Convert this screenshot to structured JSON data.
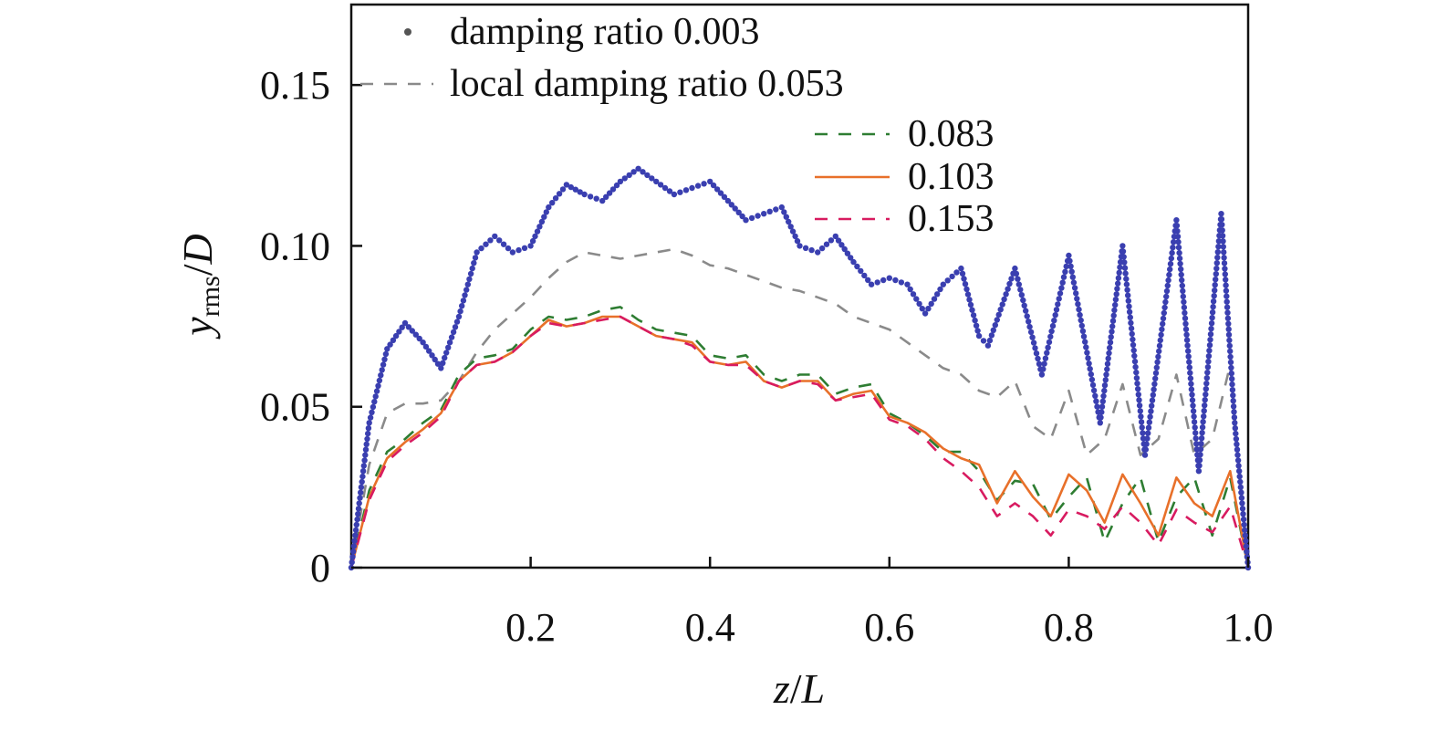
{
  "chart_data": {
    "type": "line",
    "xlabel": {
      "var": "z",
      "sep": "/",
      "denom": "L"
    },
    "ylabel": {
      "var": "y",
      "sub": "rms",
      "sep": "/",
      "denom": "D"
    },
    "xlim": [
      0,
      1.0
    ],
    "ylim": [
      0,
      0.175
    ],
    "xticks": [
      0.2,
      0.4,
      0.6,
      0.8,
      1.0
    ],
    "xtick_labels": [
      "0.2",
      "0.4",
      "0.6",
      "0.8",
      "1.0"
    ],
    "yticks": [
      0,
      0.05,
      0.1,
      0.15
    ],
    "ytick_labels": [
      "0",
      "0.05",
      "0.10",
      "0.15"
    ],
    "grid": false,
    "legend_placement": "top",
    "series": [
      {
        "name": "damping ratio 0.003",
        "style": "dots",
        "color": "#3a3fb0",
        "x": [
          0,
          0.02,
          0.04,
          0.06,
          0.08,
          0.1,
          0.12,
          0.14,
          0.16,
          0.18,
          0.2,
          0.22,
          0.24,
          0.26,
          0.28,
          0.3,
          0.32,
          0.34,
          0.36,
          0.38,
          0.4,
          0.42,
          0.44,
          0.46,
          0.48,
          0.5,
          0.52,
          0.54,
          0.56,
          0.58,
          0.6,
          0.62,
          0.64,
          0.66,
          0.68,
          0.7,
          0.71,
          0.74,
          0.77,
          0.8,
          0.835,
          0.86,
          0.885,
          0.92,
          0.945,
          0.97,
          0.985,
          1.0
        ],
        "y": [
          0,
          0.045,
          0.068,
          0.076,
          0.07,
          0.062,
          0.078,
          0.098,
          0.103,
          0.098,
          0.1,
          0.112,
          0.119,
          0.116,
          0.114,
          0.12,
          0.124,
          0.12,
          0.116,
          0.118,
          0.12,
          0.114,
          0.108,
          0.11,
          0.112,
          0.1,
          0.098,
          0.103,
          0.095,
          0.088,
          0.09,
          0.088,
          0.079,
          0.088,
          0.093,
          0.072,
          0.069,
          0.093,
          0.06,
          0.097,
          0.045,
          0.1,
          0.035,
          0.108,
          0.03,
          0.11,
          0.045,
          0.0
        ]
      },
      {
        "name": "local damping ratio 0.053",
        "style": "dash",
        "color": "#8a8a8a",
        "x": [
          0,
          0.02,
          0.04,
          0.06,
          0.08,
          0.1,
          0.12,
          0.14,
          0.16,
          0.18,
          0.2,
          0.22,
          0.24,
          0.26,
          0.28,
          0.3,
          0.32,
          0.34,
          0.36,
          0.38,
          0.4,
          0.42,
          0.44,
          0.46,
          0.48,
          0.5,
          0.52,
          0.54,
          0.56,
          0.58,
          0.6,
          0.62,
          0.64,
          0.66,
          0.68,
          0.7,
          0.72,
          0.74,
          0.76,
          0.78,
          0.8,
          0.82,
          0.84,
          0.86,
          0.88,
          0.9,
          0.92,
          0.94,
          0.96,
          0.98,
          1.0
        ],
        "y": [
          0,
          0.032,
          0.048,
          0.051,
          0.051,
          0.052,
          0.058,
          0.067,
          0.074,
          0.079,
          0.084,
          0.09,
          0.095,
          0.098,
          0.097,
          0.096,
          0.097,
          0.098,
          0.099,
          0.097,
          0.094,
          0.093,
          0.091,
          0.089,
          0.087,
          0.086,
          0.084,
          0.082,
          0.078,
          0.076,
          0.074,
          0.07,
          0.066,
          0.062,
          0.06,
          0.055,
          0.053,
          0.058,
          0.044,
          0.04,
          0.055,
          0.035,
          0.04,
          0.057,
          0.035,
          0.04,
          0.06,
          0.035,
          0.04,
          0.063,
          0.0
        ]
      },
      {
        "name": "0.083",
        "style": "dash",
        "color": "#2e7d32",
        "x": [
          0,
          0.02,
          0.04,
          0.06,
          0.08,
          0.1,
          0.12,
          0.14,
          0.16,
          0.18,
          0.2,
          0.22,
          0.24,
          0.26,
          0.28,
          0.3,
          0.32,
          0.34,
          0.36,
          0.38,
          0.4,
          0.42,
          0.44,
          0.46,
          0.48,
          0.5,
          0.52,
          0.54,
          0.56,
          0.58,
          0.6,
          0.62,
          0.64,
          0.66,
          0.68,
          0.7,
          0.72,
          0.74,
          0.76,
          0.78,
          0.8,
          0.82,
          0.84,
          0.86,
          0.88,
          0.9,
          0.92,
          0.94,
          0.96,
          0.98,
          1.0
        ],
        "y": [
          0,
          0.024,
          0.036,
          0.04,
          0.045,
          0.049,
          0.06,
          0.065,
          0.066,
          0.068,
          0.074,
          0.078,
          0.077,
          0.078,
          0.08,
          0.081,
          0.077,
          0.074,
          0.073,
          0.072,
          0.066,
          0.065,
          0.066,
          0.06,
          0.058,
          0.06,
          0.06,
          0.054,
          0.056,
          0.057,
          0.048,
          0.045,
          0.041,
          0.036,
          0.036,
          0.03,
          0.021,
          0.027,
          0.026,
          0.015,
          0.022,
          0.028,
          0.008,
          0.02,
          0.028,
          0.008,
          0.022,
          0.028,
          0.01,
          0.028,
          0.0
        ]
      },
      {
        "name": "0.103",
        "style": "solid",
        "color": "#e8702a",
        "x": [
          0,
          0.02,
          0.04,
          0.06,
          0.08,
          0.1,
          0.12,
          0.14,
          0.16,
          0.18,
          0.2,
          0.22,
          0.24,
          0.26,
          0.28,
          0.3,
          0.32,
          0.34,
          0.36,
          0.38,
          0.4,
          0.42,
          0.44,
          0.46,
          0.48,
          0.5,
          0.52,
          0.54,
          0.56,
          0.58,
          0.6,
          0.62,
          0.64,
          0.66,
          0.68,
          0.7,
          0.72,
          0.74,
          0.76,
          0.78,
          0.8,
          0.82,
          0.84,
          0.86,
          0.88,
          0.9,
          0.92,
          0.94,
          0.96,
          0.98,
          1.0
        ],
        "y": [
          0,
          0.022,
          0.034,
          0.039,
          0.043,
          0.048,
          0.058,
          0.063,
          0.064,
          0.067,
          0.072,
          0.077,
          0.075,
          0.076,
          0.078,
          0.078,
          0.075,
          0.072,
          0.071,
          0.07,
          0.064,
          0.063,
          0.064,
          0.058,
          0.056,
          0.058,
          0.058,
          0.052,
          0.054,
          0.055,
          0.047,
          0.045,
          0.042,
          0.037,
          0.034,
          0.032,
          0.02,
          0.03,
          0.022,
          0.016,
          0.029,
          0.024,
          0.014,
          0.029,
          0.02,
          0.01,
          0.028,
          0.02,
          0.016,
          0.03,
          0.0
        ]
      },
      {
        "name": "0.153",
        "style": "dash",
        "color": "#d81b60",
        "x": [
          0,
          0.02,
          0.04,
          0.06,
          0.08,
          0.1,
          0.12,
          0.14,
          0.16,
          0.18,
          0.2,
          0.22,
          0.24,
          0.26,
          0.28,
          0.3,
          0.32,
          0.34,
          0.36,
          0.38,
          0.4,
          0.42,
          0.44,
          0.46,
          0.48,
          0.5,
          0.52,
          0.54,
          0.56,
          0.58,
          0.6,
          0.62,
          0.64,
          0.66,
          0.68,
          0.7,
          0.72,
          0.74,
          0.76,
          0.78,
          0.8,
          0.82,
          0.84,
          0.86,
          0.88,
          0.9,
          0.92,
          0.94,
          0.96,
          0.98,
          1.0
        ],
        "y": [
          0,
          0.021,
          0.033,
          0.038,
          0.042,
          0.047,
          0.058,
          0.063,
          0.064,
          0.067,
          0.072,
          0.076,
          0.075,
          0.076,
          0.077,
          0.078,
          0.075,
          0.072,
          0.071,
          0.069,
          0.064,
          0.063,
          0.063,
          0.058,
          0.056,
          0.058,
          0.057,
          0.052,
          0.053,
          0.054,
          0.046,
          0.044,
          0.04,
          0.034,
          0.03,
          0.025,
          0.016,
          0.02,
          0.016,
          0.01,
          0.018,
          0.016,
          0.012,
          0.019,
          0.014,
          0.007,
          0.018,
          0.014,
          0.011,
          0.019,
          0.0
        ]
      }
    ]
  }
}
